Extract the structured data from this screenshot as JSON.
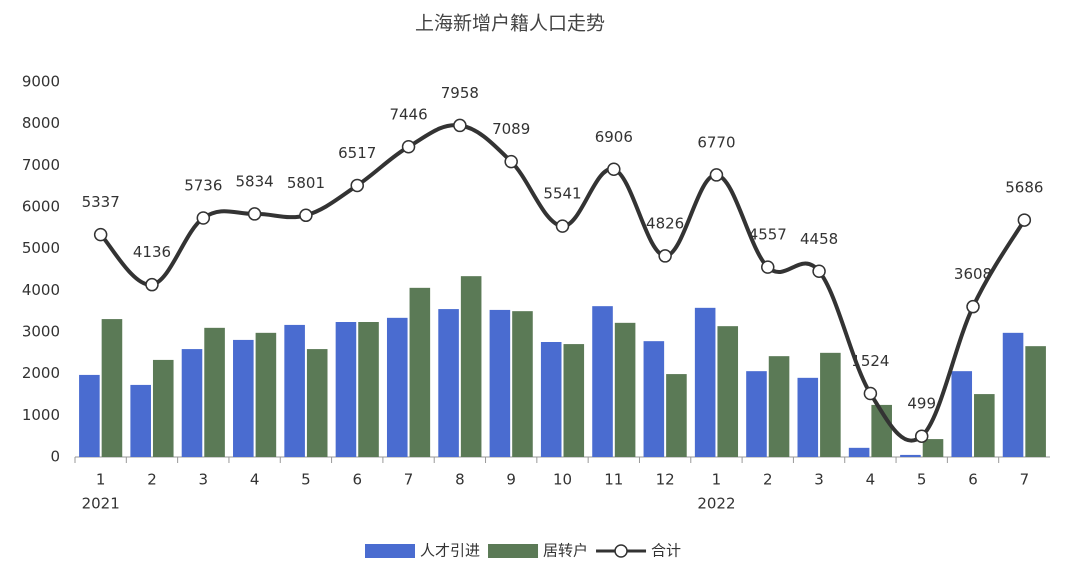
{
  "chart_data": {
    "type": "bar",
    "title": "上海新增户籍人口走势",
    "categories": [
      "1",
      "2",
      "3",
      "4",
      "5",
      "6",
      "7",
      "8",
      "9",
      "10",
      "11",
      "12",
      "1",
      "2",
      "3",
      "4",
      "5",
      "6",
      "7"
    ],
    "category_years": [
      "2021",
      null,
      null,
      null,
      null,
      null,
      null,
      null,
      null,
      null,
      null,
      null,
      "2022",
      null,
      null,
      null,
      null,
      null,
      null
    ],
    "series": [
      {
        "name": "人才引进",
        "type": "bar",
        "color": "#4a6cd0",
        "values": [
          1970,
          1730,
          2590,
          2810,
          3170,
          3240,
          3340,
          3550,
          3530,
          2760,
          3620,
          2780,
          3580,
          2060,
          1900,
          220,
          50,
          2060,
          2980
        ]
      },
      {
        "name": "居转户",
        "type": "bar",
        "color": "#5b7a56",
        "values": [
          3310,
          2330,
          3100,
          2980,
          2590,
          3240,
          4060,
          4340,
          3500,
          2710,
          3220,
          1990,
          3140,
          2420,
          2500,
          1250,
          430,
          1510,
          2660
        ]
      },
      {
        "name": "合计",
        "type": "line",
        "color": "#333333",
        "values": [
          5337,
          4136,
          5736,
          5834,
          5801,
          6517,
          7446,
          7958,
          7089,
          5541,
          6906,
          4826,
          6770,
          4557,
          4458,
          1524,
          499,
          3608,
          5686
        ]
      }
    ],
    "ylim": [
      0,
      9000
    ],
    "yticks": [
      0,
      1000,
      2000,
      3000,
      4000,
      5000,
      6000,
      7000,
      8000,
      9000
    ],
    "grid": false,
    "legend": "bottom"
  }
}
